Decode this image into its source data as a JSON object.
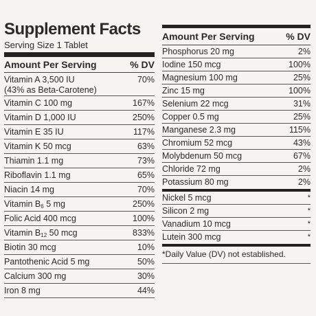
{
  "title": "Supplement Facts",
  "serving_size": "Serving Size 1 Tablet",
  "header": {
    "amount": "Amount Per Serving",
    "dv": "% DV"
  },
  "left_rows": [
    {
      "name": "Vitamin A 3,500 IU",
      "note": "(43% as Beta-Carotene)",
      "dv": "70%"
    },
    {
      "name": "Vitamin C 100 mg",
      "dv": "167%"
    },
    {
      "name": "Vitamin D 1,000 IU",
      "dv": "250%"
    },
    {
      "name": "Vitamin E 35 IU",
      "dv": "117%"
    },
    {
      "name": "Vitamin K 50 mcg",
      "dv": "63%"
    },
    {
      "name": "Thiamin 1.1 mg",
      "dv": "73%"
    },
    {
      "name": "Riboflavin 1.1 mg",
      "dv": "65%"
    },
    {
      "name": "Niacin 14 mg",
      "dv": "70%"
    },
    {
      "name_pre": "Vitamin B",
      "name_sub": "6",
      "name_post": " 5 mg",
      "dv": "250%"
    },
    {
      "name": "Folic Acid 400 mcg",
      "dv": "100%"
    },
    {
      "name_pre": "Vitamin B",
      "name_sub": "12",
      "name_post": " 50 mcg",
      "dv": "833%"
    },
    {
      "name": "Biotin 30 mcg",
      "dv": "10%"
    },
    {
      "name": "Pantothenic Acid 5 mg",
      "dv": "50%"
    },
    {
      "name": "Calcium 300 mg",
      "dv": "30%"
    },
    {
      "name": "Iron 8 mg",
      "dv": "44%"
    }
  ],
  "right_rows": [
    {
      "name": "Phosphorus 20 mg",
      "dv": "2%"
    },
    {
      "name": "Iodine 150 mcg",
      "dv": "100%"
    },
    {
      "name": "Magnesium 100 mg",
      "dv": "25%"
    },
    {
      "name": "Zinc 15 mg",
      "dv": "100%"
    },
    {
      "name": "Selenium 22 mcg",
      "dv": "31%"
    },
    {
      "name": "Copper 0.5 mg",
      "dv": "25%"
    },
    {
      "name": "Manganese 2.3 mg",
      "dv": "115%"
    },
    {
      "name": "Chromium 52 mcg",
      "dv": "43%"
    },
    {
      "name": "Molybdenum 50 mcg",
      "dv": "67%"
    },
    {
      "name": "Chloride 72 mg",
      "dv": "2%"
    },
    {
      "name": "Potassium 80 mg",
      "dv": "2%"
    }
  ],
  "right_rows_2": [
    {
      "name": "Nickel 5 mcg",
      "dv": "*"
    },
    {
      "name": "Silicon 2 mg",
      "dv": "*"
    },
    {
      "name": "Vanadium 10 mcg",
      "dv": "*"
    },
    {
      "name": "Lutein 300 mcg",
      "dv": "*"
    }
  ],
  "footnote": "*Daily Value (DV) not established."
}
